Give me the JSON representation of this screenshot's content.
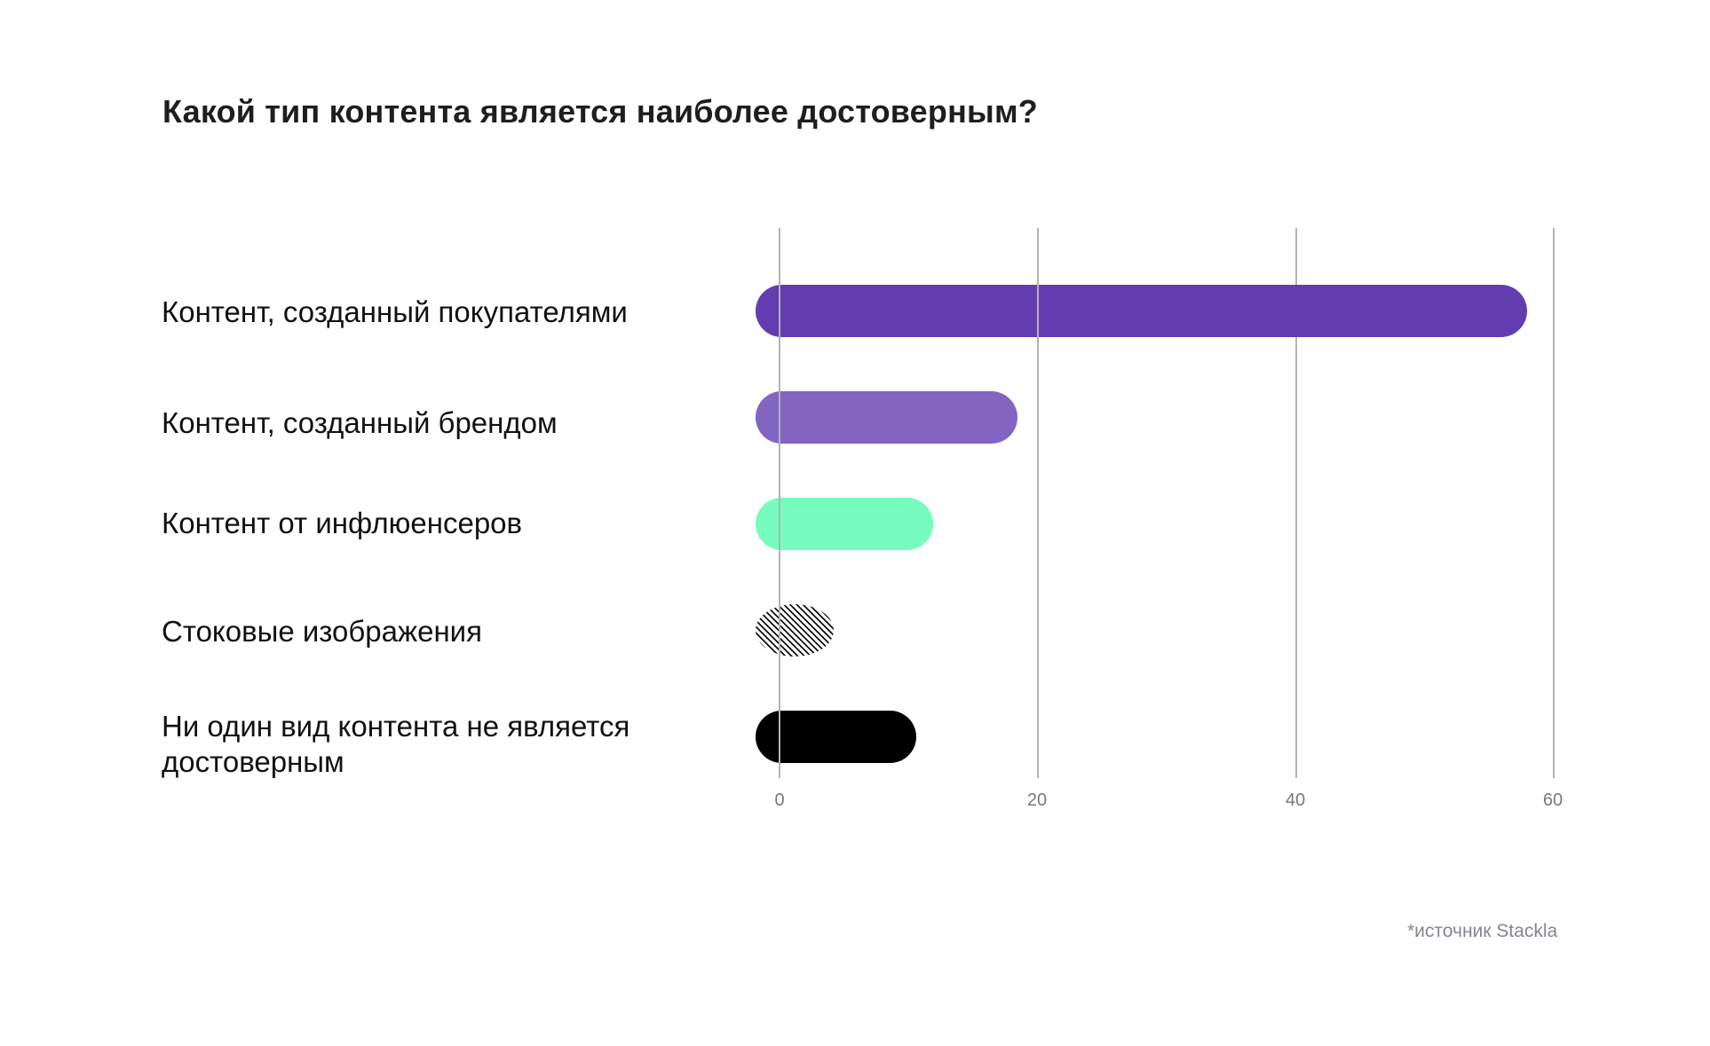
{
  "title": "Какой тип контента является наиболее достоверным?",
  "footnote": "*источник Stackla",
  "axis": {
    "ticks": [
      "0",
      "20",
      "40",
      "60"
    ]
  },
  "rows": [
    {
      "label": "Контент, созданный покупателями",
      "value": 58,
      "color": "#633db0",
      "pattern": "solid"
    },
    {
      "label": "Контент, созданный брендом",
      "value": 18.5,
      "color": "#8265c0",
      "pattern": "solid"
    },
    {
      "label": "Контент от инфлюенсеров",
      "value": 12,
      "color": "#77fbbe",
      "pattern": "solid"
    },
    {
      "label": "Стоковые изображения",
      "value": 4.3,
      "color": "#111111",
      "pattern": "hatched"
    },
    {
      "label": "Ни один вид контента не является достоверным",
      "value": 10.7,
      "color": "#000000",
      "pattern": "solid"
    }
  ],
  "chart_data": {
    "type": "bar",
    "orientation": "horizontal",
    "title": "Какой тип контента является наиболее достоверным?",
    "categories": [
      "Контент, созданный покупателями",
      "Контент, созданный брендом",
      "Контент от инфлюенсеров",
      "Стоковые изображения",
      "Ни один вид контента не является достоверным"
    ],
    "values": [
      58,
      18.5,
      12,
      4.3,
      10.7
    ],
    "xlabel": "",
    "ylabel": "",
    "xlim": [
      0,
      60
    ],
    "xticks": [
      0,
      20,
      40,
      60
    ],
    "grid": "vertical",
    "legend": "none",
    "colors": [
      "#633db0",
      "#8265c0",
      "#77fbbe",
      "hatched black/white",
      "#000000"
    ],
    "annotation": "*источник Stackla"
  }
}
